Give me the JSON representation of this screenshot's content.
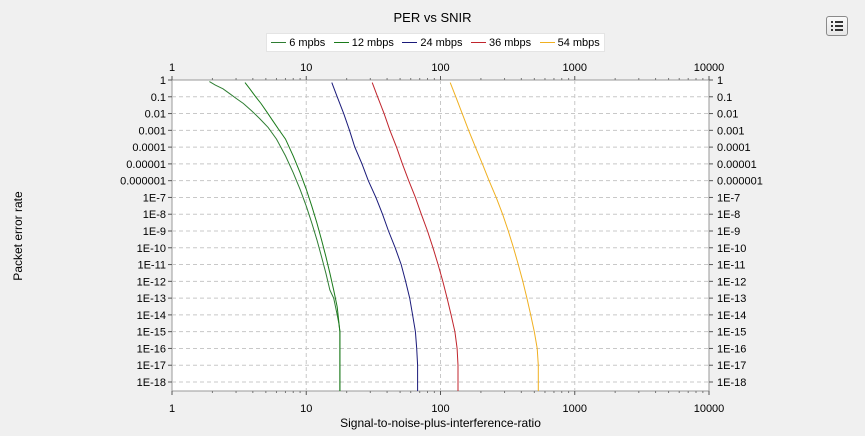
{
  "chart_data": {
    "type": "line",
    "title": "PER vs SNIR",
    "xlabel": "Signal-to-noise-plus-interference-ratio",
    "ylabel": "Packet error rate",
    "x_scale": "log",
    "y_scale": "log",
    "xlim": [
      1,
      10000
    ],
    "ylim": [
      1e-18,
      1
    ],
    "x_ticks": [
      "1",
      "10",
      "100",
      "1000",
      "10000"
    ],
    "y_ticks": [
      "1",
      "0.1",
      "0.01",
      "0.001",
      "0.0001",
      "0.00001",
      "0.000001",
      "1E-7",
      "1E-8",
      "1E-9",
      "1E-10",
      "1E-11",
      "1E-12",
      "1E-13",
      "1E-14",
      "1E-15",
      "1E-16",
      "1E-17",
      "1E-18"
    ],
    "grid": true,
    "legend_position": "top",
    "series": [
      {
        "name": "6 mpbs",
        "color": "#2e7d32",
        "x": [
          1.9,
          2.1,
          2.4,
          2.7,
          3.0,
          3.4,
          3.9,
          4.5,
          5.2,
          6.0,
          7.0,
          8.0,
          9.0,
          10.0,
          11.0,
          12.0,
          13.0,
          14.0,
          15.0,
          16.0,
          17.0,
          17.5,
          17.8,
          17.8
        ],
        "y": [
          0.8,
          0.5,
          0.3,
          0.15,
          0.08,
          0.04,
          0.015,
          0.005,
          0.0015,
          0.0003,
          3e-05,
          3e-06,
          3e-07,
          3e-08,
          3e-09,
          3e-10,
          3e-11,
          3e-12,
          3e-13,
          1e-13,
          1e-14,
          3e-15,
          1e-15,
          1e-19
        ]
      },
      {
        "name": "12 mbps",
        "color": "#1a7a1a",
        "x": [
          3.5,
          3.8,
          4.2,
          4.6,
          5.1,
          5.6,
          6.2,
          7.0,
          8.0,
          9.0,
          10.0,
          11.0,
          12.0,
          13.0,
          14.0,
          15.0,
          16.0,
          17.0,
          17.8,
          17.8
        ],
        "y": [
          0.7,
          0.3,
          0.1,
          0.04,
          0.012,
          0.004,
          0.0012,
          0.0003,
          3e-05,
          3e-06,
          3e-07,
          3e-08,
          3e-09,
          3e-10,
          3e-11,
          3e-12,
          3e-13,
          3e-14,
          1e-15,
          1e-19
        ]
      },
      {
        "name": "24 mbps",
        "color": "#1a1a7a",
        "x": [
          15.5,
          17,
          19,
          21,
          23,
          26,
          29,
          33,
          37,
          41,
          46,
          51,
          55,
          59,
          62,
          65,
          66.5,
          67.5,
          67.5
        ],
        "y": [
          0.7,
          0.1,
          0.01,
          0.001,
          0.0001,
          1e-05,
          1e-06,
          1e-07,
          1e-08,
          1e-09,
          1e-10,
          1e-11,
          1e-12,
          1e-13,
          1e-14,
          1e-15,
          1e-16,
          1e-17,
          1e-19
        ]
      },
      {
        "name": "36 mbps",
        "color": "#c0242c",
        "x": [
          31,
          34,
          38,
          42,
          47,
          52,
          58,
          65,
          72,
          80,
          88,
          96,
          104,
          112,
          120,
          128,
          133,
          135,
          135
        ],
        "y": [
          0.7,
          0.1,
          0.01,
          0.001,
          0.0001,
          1e-05,
          1e-06,
          1e-07,
          1e-08,
          1e-09,
          1e-10,
          1e-11,
          1e-12,
          1e-13,
          1e-14,
          1e-15,
          1e-16,
          1e-17,
          1e-19
        ]
      },
      {
        "name": "54 mbps",
        "color": "#f0b020",
        "x": [
          118,
          130,
          145,
          162,
          182,
          205,
          230,
          260,
          290,
          320,
          350,
          380,
          410,
          440,
          470,
          500,
          525,
          535,
          535
        ],
        "y": [
          0.7,
          0.1,
          0.01,
          0.001,
          0.0001,
          1e-05,
          1e-06,
          1e-07,
          1e-08,
          1e-09,
          1e-10,
          1e-11,
          1e-12,
          1e-13,
          1e-14,
          1e-15,
          1e-16,
          1e-17,
          1e-19
        ]
      }
    ]
  },
  "menu_icon": "list-menu-icon"
}
